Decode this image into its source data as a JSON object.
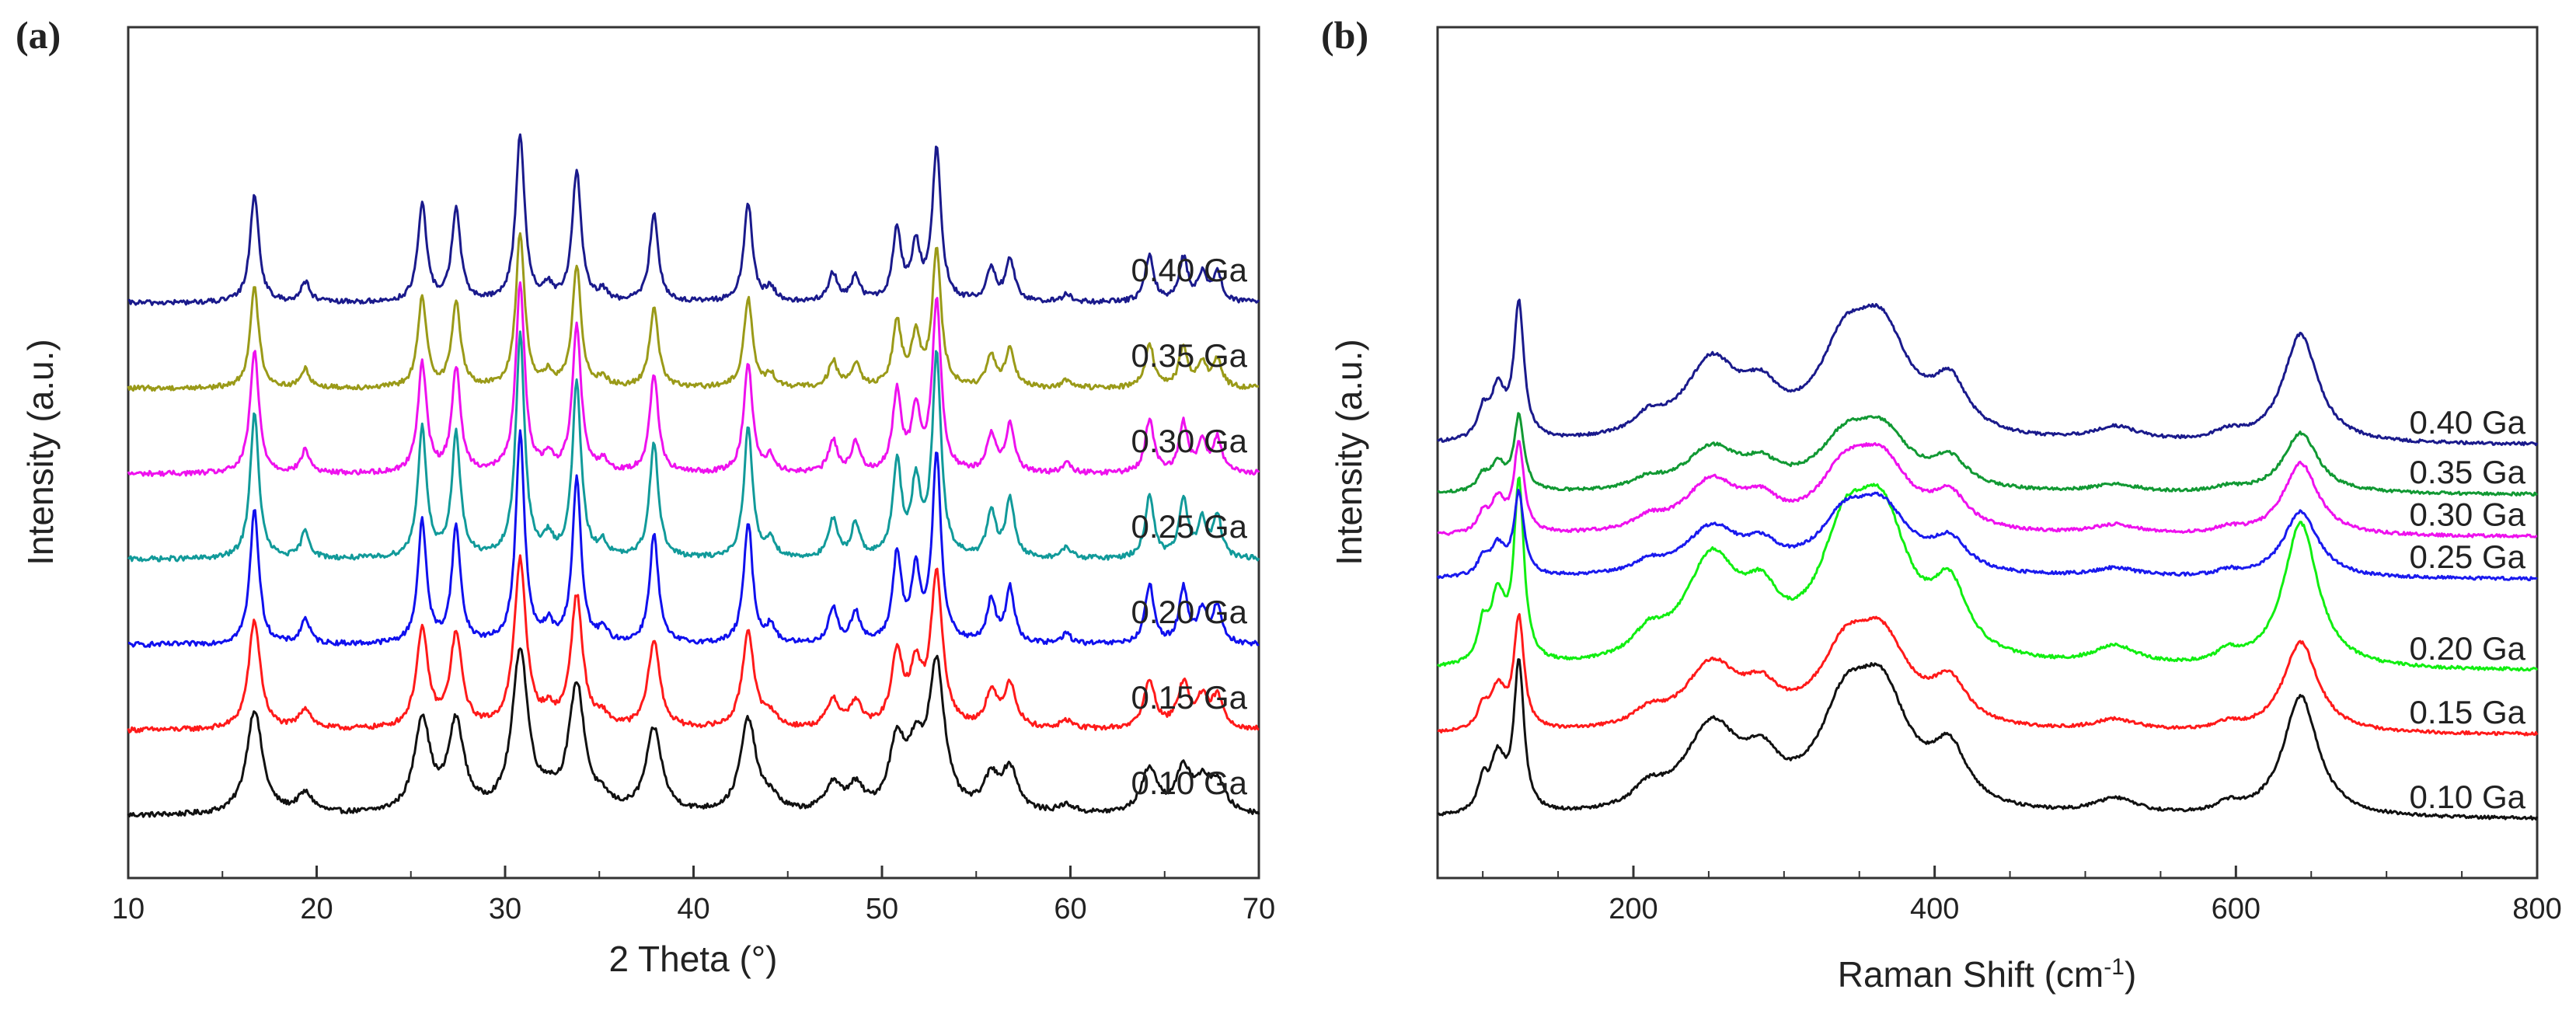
{
  "chart_data": [
    {
      "id": "a",
      "panel_label": "(a)",
      "type": "line",
      "title": "",
      "xlabel": "2 Theta (°)",
      "ylabel": "Intensity (a.u.)",
      "xlim": [
        10,
        70
      ],
      "xticks": [
        10,
        20,
        30,
        40,
        50,
        60,
        70
      ],
      "x_tick_labels": [
        "10",
        "20",
        "30",
        "40",
        "50",
        "60",
        "70"
      ],
      "y_ticks_shown": false,
      "grid": false,
      "peak_width": 0.28,
      "noise": 0.018,
      "peaks": [
        {
          "x": 16.7,
          "h": 0.65
        },
        {
          "x": 19.4,
          "h": 0.12
        },
        {
          "x": 25.6,
          "h": 0.58
        },
        {
          "x": 27.4,
          "h": 0.55
        },
        {
          "x": 30.8,
          "h": 1.0
        },
        {
          "x": 32.3,
          "h": 0.08
        },
        {
          "x": 33.8,
          "h": 0.78
        },
        {
          "x": 35.2,
          "h": 0.06
        },
        {
          "x": 37.9,
          "h": 0.52
        },
        {
          "x": 42.9,
          "h": 0.58
        },
        {
          "x": 44.1,
          "h": 0.08
        },
        {
          "x": 47.4,
          "h": 0.17
        },
        {
          "x": 48.6,
          "h": 0.15
        },
        {
          "x": 50.8,
          "h": 0.42
        },
        {
          "x": 51.8,
          "h": 0.32
        },
        {
          "x": 52.9,
          "h": 0.9
        },
        {
          "x": 55.8,
          "h": 0.2
        },
        {
          "x": 56.8,
          "h": 0.26
        },
        {
          "x": 59.8,
          "h": 0.05
        },
        {
          "x": 64.2,
          "h": 0.28
        },
        {
          "x": 66.0,
          "h": 0.26
        },
        {
          "x": 67.0,
          "h": 0.16
        },
        {
          "x": 67.8,
          "h": 0.18
        }
      ],
      "series": [
        {
          "name": "0.10 Ga",
          "color": "#111111",
          "offset": 0.0,
          "scale": 1.15,
          "width_factor": 1.8
        },
        {
          "name": "0.15 Ga",
          "color": "#ff1a1a",
          "offset": 1.1,
          "scale": 1.2,
          "width_factor": 1.35
        },
        {
          "name": "0.20 Ga",
          "color": "#1010ee",
          "offset": 2.2,
          "scale": 1.5,
          "width_factor": 1.0
        },
        {
          "name": "0.25 Ga",
          "color": "#119a9a",
          "offset": 3.3,
          "scale": 1.6,
          "width_factor": 1.0
        },
        {
          "name": "0.30 Ga",
          "color": "#ee11ee",
          "offset": 4.4,
          "scale": 1.35,
          "width_factor": 1.0
        },
        {
          "name": "0.35 Ga",
          "color": "#9a9a18",
          "offset": 5.5,
          "scale": 1.1,
          "width_factor": 1.0
        },
        {
          "name": "0.40 Ga",
          "color": "#1a1a8c",
          "offset": 6.6,
          "scale": 1.2,
          "width_factor": 1.0
        }
      ]
    },
    {
      "id": "b",
      "panel_label": "(b)",
      "type": "line",
      "title": "",
      "xlabel": "Raman Shift (cm",
      "xlabel_sup": "-1",
      "xlabel_end": ")",
      "ylabel": "Intensity (a.u.)",
      "xlim": [
        70,
        800
      ],
      "xticks": [
        200,
        400,
        600,
        800
      ],
      "x_tick_labels": [
        "200",
        "400",
        "600",
        "800"
      ],
      "y_ticks_shown": false,
      "grid": false,
      "noise": 0.01,
      "peaks": [
        {
          "x": 100,
          "h": 0.18,
          "w": 4
        },
        {
          "x": 110,
          "h": 0.35,
          "w": 6
        },
        {
          "x": 124,
          "h": 0.95,
          "w": 4
        },
        {
          "x": 210,
          "h": 0.12,
          "w": 12
        },
        {
          "x": 252,
          "h": 0.55,
          "w": 22
        },
        {
          "x": 285,
          "h": 0.25,
          "w": 14
        },
        {
          "x": 340,
          "h": 0.55,
          "w": 20
        },
        {
          "x": 365,
          "h": 0.7,
          "w": 22
        },
        {
          "x": 410,
          "h": 0.35,
          "w": 14
        },
        {
          "x": 520,
          "h": 0.1,
          "w": 18
        },
        {
          "x": 595,
          "h": 0.06,
          "w": 10
        },
        {
          "x": 643,
          "h": 0.78,
          "w": 14
        }
      ],
      "series": [
        {
          "name": "0.10 Ga",
          "color": "#111111",
          "offset": 0.0,
          "scale": 1.0
        },
        {
          "name": "0.15 Ga",
          "color": "#ff1a1a",
          "offset": 1.2,
          "scale": 0.75
        },
        {
          "name": "0.20 Ga",
          "color": "#11ee11",
          "offset": 2.1,
          "scale": 1.2
        },
        {
          "name": "0.25 Ga",
          "color": "#1a1aee",
          "offset": 3.4,
          "scale": 0.55
        },
        {
          "name": "0.30 Ga",
          "color": "#ee11ee",
          "offset": 4.0,
          "scale": 0.6
        },
        {
          "name": "0.35 Ga",
          "color": "#119933",
          "offset": 4.6,
          "scale": 0.5
        },
        {
          "name": "0.40 Ga",
          "color": "#1a1a8c",
          "offset": 5.3,
          "scale": 0.9
        }
      ]
    }
  ]
}
